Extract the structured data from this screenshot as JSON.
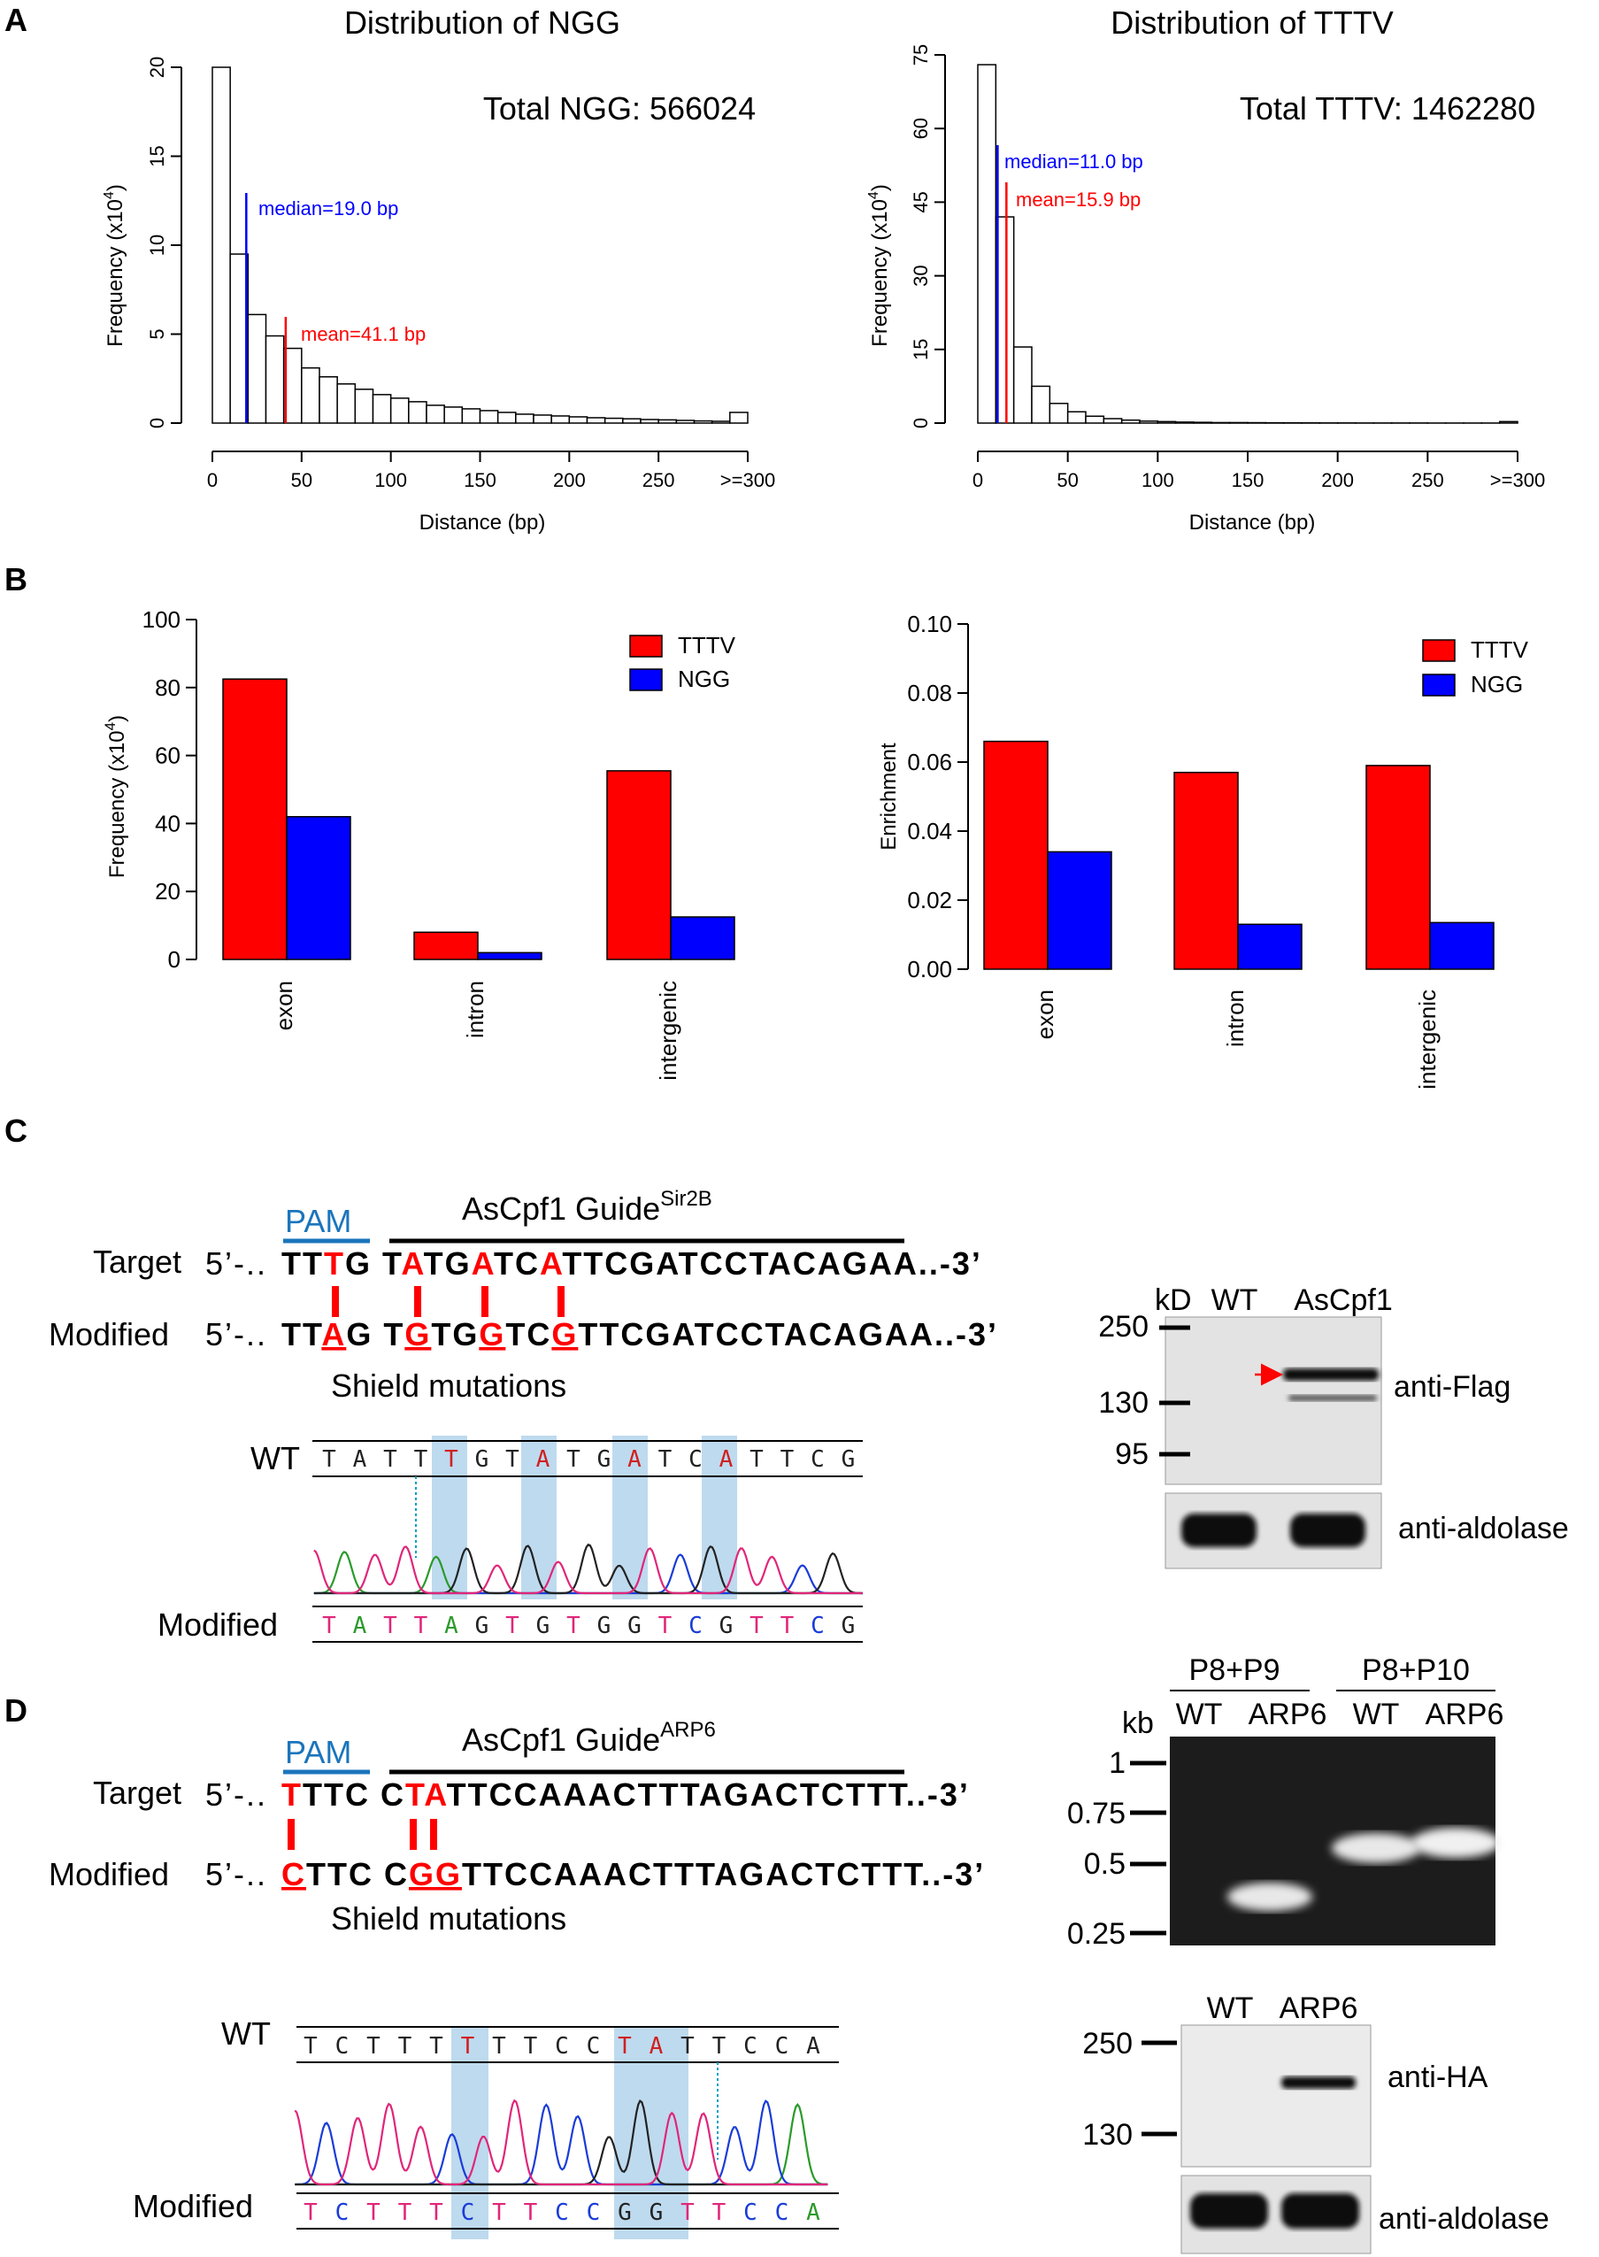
{
  "panels": {
    "A": "A",
    "B": "B",
    "C": "C",
    "D": "D"
  },
  "colors": {
    "ttTV": "#ff0000",
    "ngg": "#0000ff",
    "median": "#0000ff",
    "mean": "#ff0000",
    "pam": "#1b75bc",
    "mutation": "#ff0000",
    "highlight": "#a8cde8"
  },
  "A": {
    "left": {
      "title": "Distribution of NGG",
      "total": "Total NGG: 566024",
      "ylabel_main": "Frequency (x10",
      "ylabel_sup": "4",
      "ylabel_end": ")",
      "xlabel": "Distance (bp)",
      "median_label": "median=19.0 bp",
      "mean_label": "mean=41.1 bp",
      "median": 19.0,
      "mean": 41.1,
      "yticks": [
        "0",
        "5",
        "10",
        "15",
        "20"
      ],
      "xticks": [
        "0",
        "50",
        "100",
        "150",
        "200",
        "250",
        ">=300"
      ],
      "chart_data": {
        "type": "bar",
        "bin_width": 10,
        "bins_start": [
          0,
          10,
          20,
          30,
          40,
          50,
          60,
          70,
          80,
          90,
          100,
          110,
          120,
          130,
          140,
          150,
          160,
          170,
          180,
          190,
          200,
          210,
          220,
          230,
          240,
          250,
          260,
          270,
          280,
          290
        ],
        "values": [
          20.0,
          9.5,
          6.1,
          4.9,
          4.2,
          3.1,
          2.6,
          2.2,
          1.9,
          1.6,
          1.4,
          1.2,
          1.0,
          0.9,
          0.8,
          0.7,
          0.6,
          0.5,
          0.45,
          0.4,
          0.35,
          0.3,
          0.27,
          0.24,
          0.2,
          0.18,
          0.15,
          0.12,
          0.1,
          0.6
        ],
        "ylim": [
          0,
          20
        ],
        "xlim": [
          0,
          300
        ]
      }
    },
    "right": {
      "title": "Distribution of TTTV",
      "total": "Total TTTV: 1462280",
      "ylabel_main": "Frequency (x10",
      "ylabel_sup": "4",
      "ylabel_end": ")",
      "xlabel": "Distance (bp)",
      "median_label": "median=11.0 bp",
      "mean_label": "mean=15.9 bp",
      "median": 11.0,
      "mean": 15.9,
      "yticks": [
        "0",
        "15",
        "30",
        "45",
        "60",
        "75"
      ],
      "xticks": [
        "0",
        "50",
        "100",
        "150",
        "200",
        "250",
        ">=300"
      ],
      "chart_data": {
        "type": "bar",
        "bin_width": 10,
        "bins_start": [
          0,
          10,
          20,
          30,
          40,
          50,
          60,
          70,
          80,
          90,
          100,
          110,
          120,
          130,
          140,
          150,
          160,
          170,
          180,
          190,
          200,
          210,
          220,
          230,
          240,
          250,
          260,
          270,
          280,
          290
        ],
        "values": [
          73.0,
          42.0,
          15.5,
          7.5,
          4.0,
          2.3,
          1.4,
          0.9,
          0.6,
          0.4,
          0.3,
          0.2,
          0.15,
          0.1,
          0.1,
          0.08,
          0.06,
          0.05,
          0.04,
          0.03,
          0.03,
          0.02,
          0.02,
          0.02,
          0.02,
          0.01,
          0.01,
          0.01,
          0.01,
          0.3
        ],
        "ylim": [
          0,
          75
        ],
        "xlim": [
          0,
          300
        ]
      }
    }
  },
  "B": {
    "left": {
      "ylabel_main": "Frequency (x10",
      "ylabel_sup": "4",
      "ylabel_end": ")",
      "yticks": [
        "0",
        "20",
        "40",
        "60",
        "80",
        "100"
      ],
      "legend": [
        "TTTV",
        "NGG"
      ],
      "chart_data": {
        "type": "bar",
        "categories": [
          "exon",
          "intron",
          "intergenic"
        ],
        "series": [
          {
            "name": "TTTV",
            "values": [
              82.5,
              8.0,
              55.5
            ]
          },
          {
            "name": "NGG",
            "values": [
              42.0,
              2.0,
              12.5
            ]
          }
        ],
        "ylim": [
          0,
          100
        ]
      }
    },
    "right": {
      "ylabel": "Enrichment",
      "yticks": [
        "0.00",
        "0.02",
        "0.04",
        "0.06",
        "0.08",
        "0.10"
      ],
      "legend": [
        "TTTV",
        "NGG"
      ],
      "chart_data": {
        "type": "bar",
        "categories": [
          "exon",
          "intron",
          "intergenic"
        ],
        "series": [
          {
            "name": "TTTV",
            "values": [
              0.066,
              0.057,
              0.059
            ]
          },
          {
            "name": "NGG",
            "values": [
              0.034,
              0.013,
              0.0135
            ]
          }
        ],
        "ylim": [
          0,
          0.1
        ]
      }
    }
  },
  "C": {
    "pam": "PAM",
    "guide": "AsCpf1 Guide",
    "guide_sup": "Sir2B",
    "target_label": "Target",
    "modified_label": "Modified",
    "five_prime": "5’-..",
    "target_seq": [
      {
        "t": "TT"
      },
      {
        "t": "T",
        "m": true
      },
      {
        "t": "G "
      },
      {
        "t": "T"
      },
      {
        "t": "A",
        "m": true
      },
      {
        "t": "TG"
      },
      {
        "t": "A",
        "m": true
      },
      {
        "t": "TC"
      },
      {
        "t": "A",
        "m": true
      },
      {
        "t": "TTCGATCCTACAGAA..-3’"
      }
    ],
    "modified_seq": [
      {
        "t": "TT"
      },
      {
        "t": "A",
        "m": true
      },
      {
        "t": "G "
      },
      {
        "t": "T"
      },
      {
        "t": "G",
        "m": true
      },
      {
        "t": "TG"
      },
      {
        "t": "G",
        "m": true
      },
      {
        "t": "TC"
      },
      {
        "t": "G",
        "m": true
      },
      {
        "t": "TTCGATCCTACAGAA..-3’"
      }
    ],
    "shield": "Shield mutations",
    "wt_label": "WT",
    "chrom_wt": "TATTTGTATGATCATTCG",
    "chrom_mod": "TATTAGTGTGGTCGTTCG",
    "blot": {
      "kd": "kD",
      "lanes": [
        "WT",
        "AsCpf1"
      ],
      "markers": [
        "250",
        "130",
        "95"
      ],
      "anti_flag": "anti-Flag",
      "anti_aldolase": "anti-aldolase"
    }
  },
  "D": {
    "pam": "PAM",
    "guide": "AsCpf1 Guide",
    "guide_sup": "ARP6",
    "target_label": "Target",
    "modified_label": "Modified",
    "five_prime": "5’-..",
    "target_seq": [
      {
        "t": "T",
        "m": true
      },
      {
        "t": "TTC C"
      },
      {
        "t": "TA",
        "m": true
      },
      {
        "t": "TTCCAAACTTTAGACTCTTT..-3’"
      }
    ],
    "modified_seq": [
      {
        "t": "C",
        "m": true
      },
      {
        "t": "TTC C"
      },
      {
        "t": "GG",
        "m": true
      },
      {
        "t": "TTCCAAACTTTAGACTCTTT..-3’"
      }
    ],
    "shield": "Shield mutations",
    "wt_label": "WT",
    "chrom_wt": "TCTTTTTTCCTATTCCA",
    "chrom_mod": "TCTTTCTTCCGGTTCCA",
    "gel": {
      "kb": "kb",
      "groups": [
        "P8+P9",
        "P8+P10"
      ],
      "lanes": [
        "WT",
        "ARP6",
        "WT",
        "ARP6"
      ],
      "markers": [
        "1",
        "0.75",
        "0.5",
        "0.25"
      ]
    },
    "blot": {
      "lanes": [
        "WT",
        "ARP6"
      ],
      "markers": [
        "250",
        "130"
      ],
      "anti_ha": "anti-HA",
      "anti_aldolase": "anti-aldolase"
    }
  }
}
